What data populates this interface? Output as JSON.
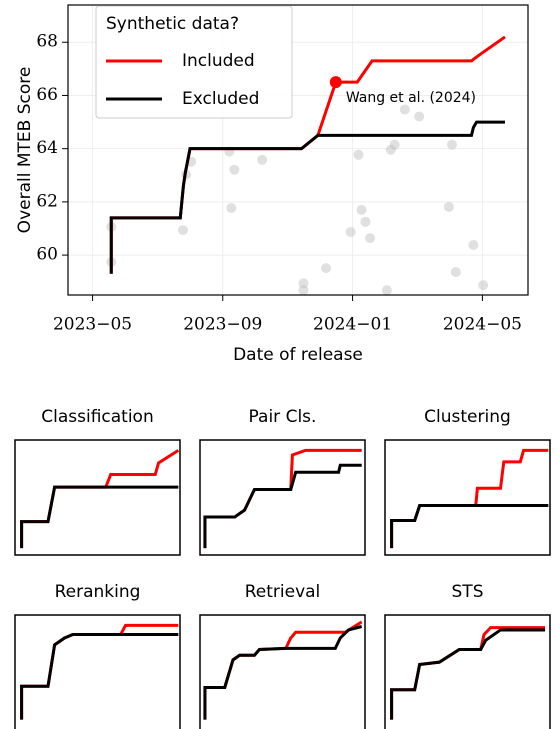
{
  "chart_data": [
    {
      "type": "line",
      "ylabel": "Overall MTEB Score",
      "xlabel": "Date of release",
      "legend_title": "Synthetic data?",
      "legend": "upper left",
      "grid": true,
      "xlim": [
        2023.27,
        2024.45
      ],
      "ylim": [
        58.5,
        69.4
      ],
      "xticks": [
        {
          "value": 2023.333,
          "label": "2023−05"
        },
        {
          "value": 2023.667,
          "label": "2023−09"
        },
        {
          "value": 2024.0,
          "label": "2024−01"
        },
        {
          "value": 2024.333,
          "label": "2024−05"
        }
      ],
      "yticks": [
        60,
        62,
        64,
        66,
        68
      ],
      "series": [
        {
          "name": "Included",
          "color": "#ff0000",
          "x": [
            2023.381,
            2023.381,
            2023.558,
            2023.566,
            2023.571,
            2023.583,
            2023.869,
            2023.911,
            2023.957,
            2024.012,
            2024.05,
            2024.305,
            2024.323,
            2024.391
          ],
          "values": [
            59.3,
            61.4,
            61.4,
            62.6,
            63.1,
            64.0,
            64.0,
            64.5,
            66.5,
            66.5,
            67.3,
            67.3,
            67.5,
            68.2
          ]
        },
        {
          "name": "Excluded",
          "color": "#000000",
          "x": [
            2023.381,
            2023.381,
            2023.558,
            2023.566,
            2023.571,
            2023.583,
            2023.869,
            2023.911,
            2024.305,
            2024.31,
            2024.318,
            2024.391
          ],
          "values": [
            59.3,
            61.4,
            61.4,
            62.6,
            63.1,
            64.0,
            64.0,
            64.5,
            64.5,
            64.8,
            65.0,
            65.0
          ]
        }
      ],
      "points": {
        "color": "#bbbbbb",
        "x": [
          2023.381,
          2023.381,
          2023.565,
          2023.573,
          2023.586,
          2023.684,
          2023.689,
          2023.697,
          2023.768,
          2023.874,
          2023.874,
          2023.932,
          2023.995,
          2024.015,
          2024.023,
          2024.033,
          2024.045,
          2024.088,
          2024.098,
          2024.108,
          2024.134,
          2024.171,
          2024.247,
          2024.255,
          2024.265,
          2024.31,
          2024.335
        ],
        "values": [
          61.06,
          59.74,
          60.94,
          63.02,
          63.51,
          63.89,
          61.77,
          63.21,
          63.58,
          58.94,
          58.68,
          59.51,
          60.87,
          63.77,
          61.7,
          61.25,
          60.64,
          58.68,
          63.96,
          64.15,
          65.47,
          65.21,
          61.81,
          64.15,
          59.36,
          60.38,
          58.87
        ]
      },
      "annotation": {
        "text": "Wang et al. (2024)",
        "x": 2023.957,
        "y": 66.5
      }
    },
    {
      "type": "line",
      "title": "Classification",
      "xlim": [
        0,
        1
      ],
      "ylim": [
        0,
        1
      ],
      "series": [
        {
          "color": "#ff0000",
          "x": [
            0.04,
            0.04,
            0.2,
            0.24,
            0.55,
            0.58,
            0.85,
            0.87,
            0.99
          ],
          "values": [
            0.06,
            0.29,
            0.29,
            0.59,
            0.59,
            0.7,
            0.7,
            0.8,
            0.91
          ]
        },
        {
          "color": "#000000",
          "x": [
            0.04,
            0.04,
            0.2,
            0.24,
            0.99
          ],
          "values": [
            0.06,
            0.29,
            0.29,
            0.59,
            0.59
          ]
        }
      ]
    },
    {
      "type": "line",
      "title": "Pair Cls.",
      "xlim": [
        0,
        1
      ],
      "ylim": [
        0,
        1
      ],
      "series": [
        {
          "color": "#ff0000",
          "x": [
            0.03,
            0.03,
            0.21,
            0.27,
            0.33,
            0.55,
            0.56,
            0.64,
            0.98
          ],
          "values": [
            0.06,
            0.33,
            0.33,
            0.39,
            0.57,
            0.57,
            0.87,
            0.91,
            0.91
          ]
        },
        {
          "color": "#000000",
          "x": [
            0.03,
            0.03,
            0.21,
            0.27,
            0.33,
            0.55,
            0.58,
            0.84,
            0.85,
            0.98
          ],
          "values": [
            0.06,
            0.33,
            0.33,
            0.39,
            0.57,
            0.57,
            0.72,
            0.72,
            0.78,
            0.78
          ]
        }
      ]
    },
    {
      "type": "line",
      "title": "Clustering",
      "xlim": [
        0,
        1
      ],
      "ylim": [
        0,
        1
      ],
      "series": [
        {
          "color": "#ff0000",
          "x": [
            0.04,
            0.04,
            0.18,
            0.21,
            0.55,
            0.56,
            0.7,
            0.72,
            0.82,
            0.84,
            0.99
          ],
          "values": [
            0.06,
            0.3,
            0.3,
            0.43,
            0.43,
            0.58,
            0.58,
            0.81,
            0.81,
            0.91,
            0.91
          ]
        },
        {
          "color": "#000000",
          "x": [
            0.04,
            0.04,
            0.18,
            0.21,
            0.99
          ],
          "values": [
            0.06,
            0.3,
            0.3,
            0.43,
            0.43
          ]
        }
      ]
    },
    {
      "type": "line",
      "title": "Reranking",
      "xlim": [
        0,
        1
      ],
      "ylim": [
        0,
        1
      ],
      "series": [
        {
          "color": "#ff0000",
          "x": [
            0.04,
            0.04,
            0.2,
            0.24,
            0.3,
            0.35,
            0.64,
            0.67,
            0.99
          ],
          "values": [
            0.09,
            0.38,
            0.38,
            0.74,
            0.8,
            0.83,
            0.83,
            0.91,
            0.91
          ]
        },
        {
          "color": "#000000",
          "x": [
            0.04,
            0.04,
            0.2,
            0.24,
            0.3,
            0.35,
            0.99
          ],
          "values": [
            0.09,
            0.38,
            0.38,
            0.74,
            0.8,
            0.83,
            0.83
          ]
        }
      ]
    },
    {
      "type": "line",
      "title": "Retrieval",
      "xlim": [
        0,
        1
      ],
      "ylim": [
        0,
        1
      ],
      "series": [
        {
          "color": "#ff0000",
          "x": [
            0.03,
            0.03,
            0.15,
            0.2,
            0.24,
            0.33,
            0.36,
            0.52,
            0.55,
            0.58,
            0.88,
            0.98
          ],
          "values": [
            0.09,
            0.37,
            0.37,
            0.61,
            0.65,
            0.65,
            0.7,
            0.71,
            0.8,
            0.85,
            0.85,
            0.94
          ]
        },
        {
          "color": "#000000",
          "x": [
            0.03,
            0.03,
            0.15,
            0.2,
            0.24,
            0.33,
            0.36,
            0.52,
            0.82,
            0.85,
            0.9,
            0.98
          ],
          "values": [
            0.09,
            0.37,
            0.37,
            0.61,
            0.65,
            0.65,
            0.7,
            0.71,
            0.71,
            0.8,
            0.87,
            0.9
          ]
        }
      ]
    },
    {
      "type": "line",
      "title": "STS",
      "xlim": [
        0,
        1
      ],
      "ylim": [
        0,
        1
      ],
      "series": [
        {
          "color": "#ff0000",
          "x": [
            0.04,
            0.04,
            0.18,
            0.21,
            0.33,
            0.45,
            0.58,
            0.6,
            0.64,
            0.97
          ],
          "values": [
            0.09,
            0.35,
            0.35,
            0.57,
            0.59,
            0.7,
            0.7,
            0.83,
            0.89,
            0.89
          ]
        },
        {
          "color": "#000000",
          "x": [
            0.04,
            0.04,
            0.18,
            0.21,
            0.33,
            0.45,
            0.58,
            0.61,
            0.7,
            0.97
          ],
          "values": [
            0.09,
            0.35,
            0.35,
            0.57,
            0.59,
            0.7,
            0.7,
            0.78,
            0.87,
            0.87
          ]
        }
      ]
    }
  ]
}
